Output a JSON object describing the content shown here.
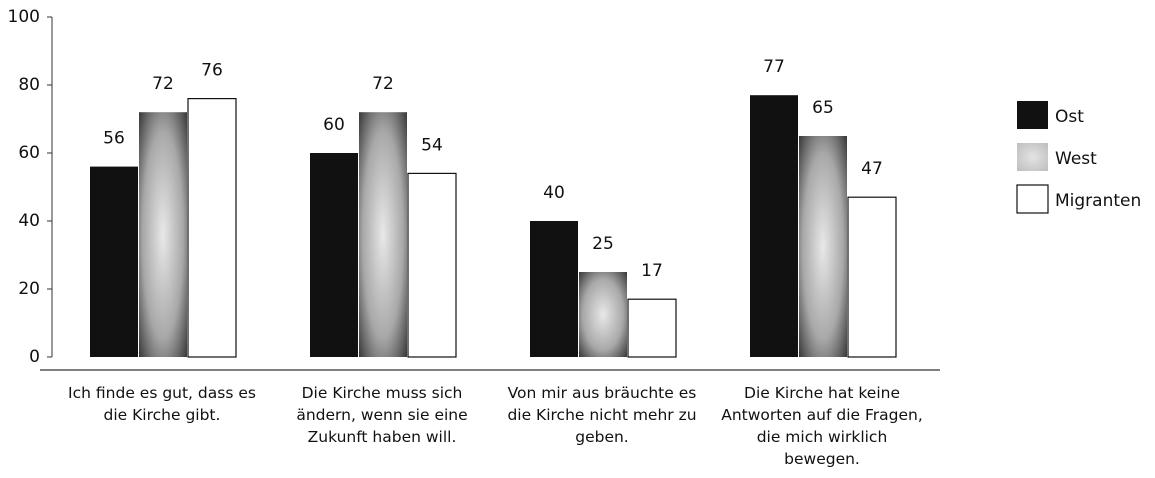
{
  "chart_data": {
    "type": "bar",
    "categories": [
      "Ich finde es gut, dass es die Kirche gibt.",
      "Die Kirche muss sich ändern, wenn sie eine Zukunft haben will.",
      "Von mir aus bräuchte es die Kirche nicht mehr zu geben.",
      "Die Kirche hat keine Antworten auf die Fragen, die mich wirklich bewegen."
    ],
    "series": [
      {
        "name": "Ost",
        "color": "#111111",
        "values": [
          56,
          60,
          40,
          77
        ]
      },
      {
        "name": "West",
        "color": "#9a9a9a",
        "values": [
          72,
          72,
          25,
          65
        ]
      },
      {
        "name": "Migranten",
        "color": "#ffffff",
        "values": [
          76,
          54,
          17,
          47
        ]
      }
    ],
    "ylim": [
      0,
      100
    ],
    "yticks": [
      0,
      20,
      40,
      60,
      80,
      100
    ],
    "legend": "right"
  }
}
